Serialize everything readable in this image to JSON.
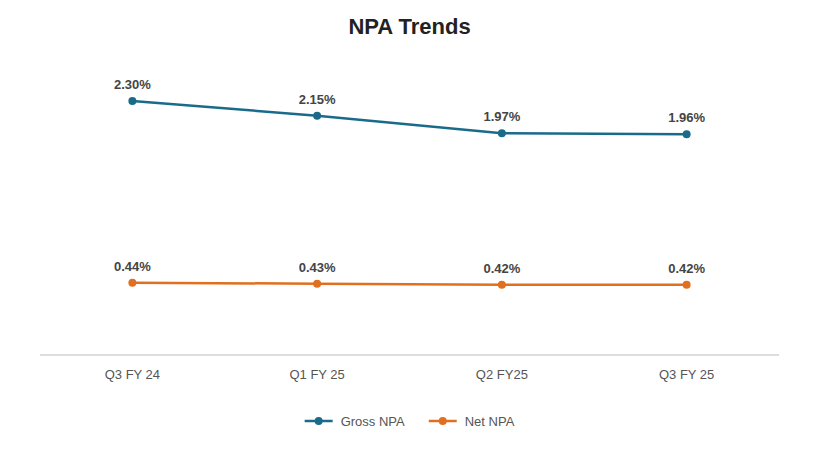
{
  "chart_data": {
    "type": "line",
    "title": "NPA Trends",
    "categories": [
      "Q3 FY 24",
      "Q1 FY 25",
      "Q2 FY25",
      "Q3 FY 25"
    ],
    "series": [
      {
        "name": "Gross NPA",
        "color": "#1a6b8a",
        "marker": "circle",
        "values": [
          2.3,
          2.15,
          1.97,
          1.96
        ],
        "value_labels": [
          "2.30%",
          "2.15%",
          "1.97%",
          "1.96%"
        ]
      },
      {
        "name": "Net NPA",
        "color": "#e07020",
        "marker": "circle",
        "values": [
          0.44,
          0.43,
          0.42,
          0.42
        ],
        "value_labels": [
          "0.44%",
          "0.43%",
          "0.42%",
          "0.42%"
        ]
      }
    ],
    "ylim": [
      -0.3,
      2.7
    ],
    "grid": false,
    "legend": "bottom",
    "data_labels": true,
    "tick_labels": "x"
  }
}
